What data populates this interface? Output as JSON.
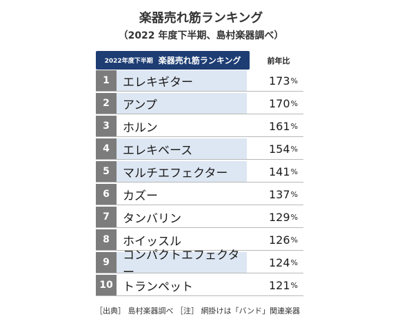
{
  "title": "楽器売れ筋ランキング",
  "subtitle": "（2022 年度下半期、島村楽器調べ）",
  "header": {
    "period": "2022年度下半期",
    "label": "楽器売れ筋ランキング",
    "yoy_label": "前年比"
  },
  "footnote": "［出典］ 島村楽器調べ ［注］ 網掛けは「バンド」関連楽器",
  "colors": {
    "header_bg": "#1d3d73",
    "rank_bg": "#7c7c7c",
    "band_shade": "#dde7f3"
  },
  "chart_data": {
    "type": "table",
    "unit": "%",
    "rows": [
      {
        "rank": "1",
        "name": "エレキギター",
        "value": 173,
        "band": true
      },
      {
        "rank": "2",
        "name": "アンプ",
        "value": 170,
        "band": true
      },
      {
        "rank": "3",
        "name": "ホルン",
        "value": 161,
        "band": false
      },
      {
        "rank": "4",
        "name": "エレキベース",
        "value": 154,
        "band": true
      },
      {
        "rank": "5",
        "name": "マルチエフェクター",
        "value": 141,
        "band": true
      },
      {
        "rank": "6",
        "name": "カズー",
        "value": 137,
        "band": false
      },
      {
        "rank": "7",
        "name": "タンバリン",
        "value": 129,
        "band": false
      },
      {
        "rank": "8",
        "name": "ホイッスル",
        "value": 126,
        "band": false
      },
      {
        "rank": "9",
        "name": "コンパクトエフェクター",
        "value": 124,
        "band": true
      },
      {
        "rank": "10",
        "name": "トランペット",
        "value": 121,
        "band": false
      }
    ]
  }
}
